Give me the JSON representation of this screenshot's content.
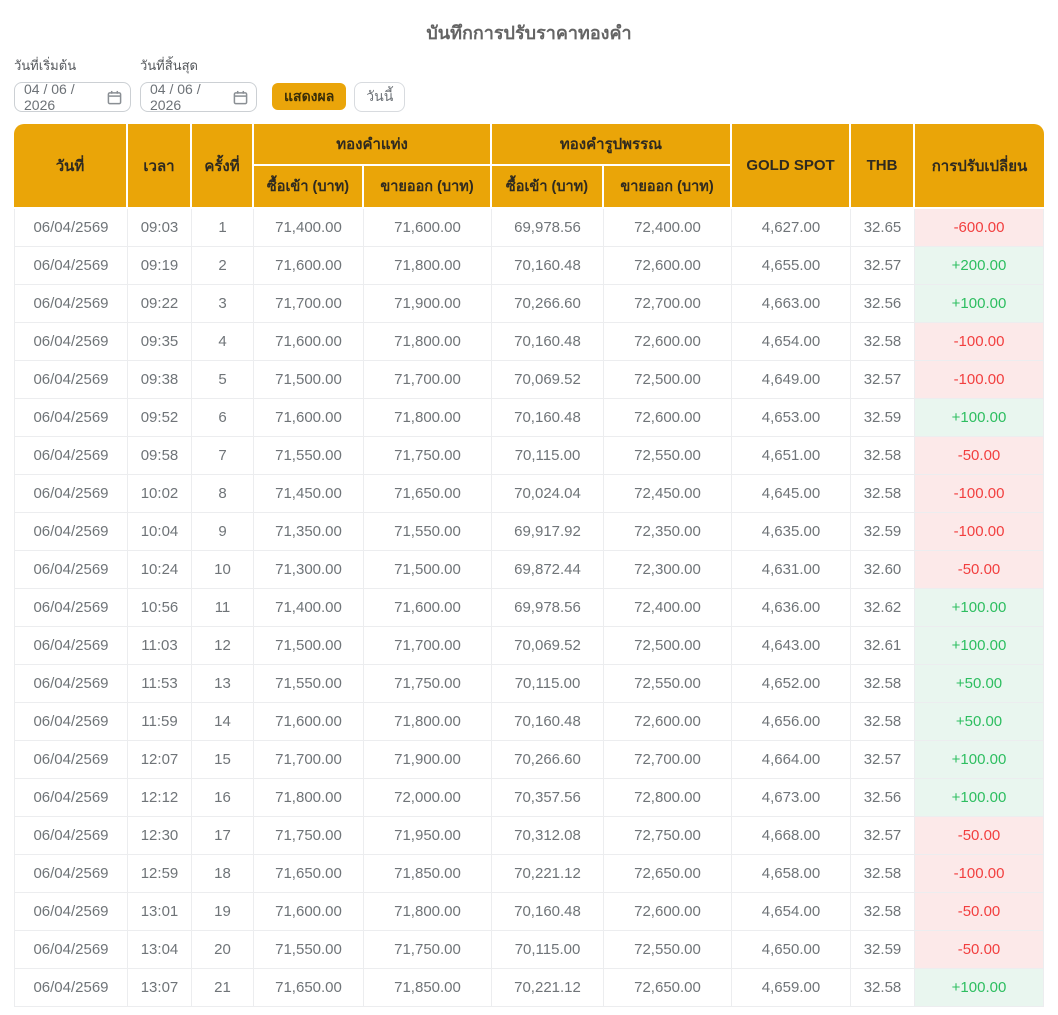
{
  "page": {
    "title": "บันทึกการปรับราคาทองคำ"
  },
  "filters": {
    "start_label": "วันที่เริ่มต้น",
    "end_label": "วันที่สิ้นสุด",
    "start_value": "04 / 06 / 2026",
    "end_value": "04 / 06 / 2026",
    "show_button": "แสดงผล",
    "today_button": "วันนี้"
  },
  "table": {
    "headers": {
      "date": "วันที่",
      "time": "เวลา",
      "round": "ครั้งที่",
      "gold_bar_group": "ทองคำแท่ง",
      "ornament_group": "ทองคำรูปพรรณ",
      "buy": "ซื้อเข้า (บาท)",
      "sell": "ขายออก (บาท)",
      "gold_spot": "GOLD SPOT",
      "thb": "THB",
      "change": "การปรับเปลี่ยน"
    },
    "colors": {
      "header_bg": "#EAA508",
      "positive_text": "#2DBE60",
      "positive_bg": "#E9F6EF",
      "negative_text": "#F23F3F",
      "negative_bg": "#FCE9E9"
    },
    "rows": [
      {
        "date": "06/04/2569",
        "time": "09:03",
        "round": "1",
        "bar_buy": "71,400.00",
        "bar_sell": "71,600.00",
        "orn_buy": "69,978.56",
        "orn_sell": "72,400.00",
        "gold_spot": "4,627.00",
        "thb": "32.65",
        "change": "-600.00"
      },
      {
        "date": "06/04/2569",
        "time": "09:19",
        "round": "2",
        "bar_buy": "71,600.00",
        "bar_sell": "71,800.00",
        "orn_buy": "70,160.48",
        "orn_sell": "72,600.00",
        "gold_spot": "4,655.00",
        "thb": "32.57",
        "change": "+200.00"
      },
      {
        "date": "06/04/2569",
        "time": "09:22",
        "round": "3",
        "bar_buy": "71,700.00",
        "bar_sell": "71,900.00",
        "orn_buy": "70,266.60",
        "orn_sell": "72,700.00",
        "gold_spot": "4,663.00",
        "thb": "32.56",
        "change": "+100.00"
      },
      {
        "date": "06/04/2569",
        "time": "09:35",
        "round": "4",
        "bar_buy": "71,600.00",
        "bar_sell": "71,800.00",
        "orn_buy": "70,160.48",
        "orn_sell": "72,600.00",
        "gold_spot": "4,654.00",
        "thb": "32.58",
        "change": "-100.00"
      },
      {
        "date": "06/04/2569",
        "time": "09:38",
        "round": "5",
        "bar_buy": "71,500.00",
        "bar_sell": "71,700.00",
        "orn_buy": "70,069.52",
        "orn_sell": "72,500.00",
        "gold_spot": "4,649.00",
        "thb": "32.57",
        "change": "-100.00"
      },
      {
        "date": "06/04/2569",
        "time": "09:52",
        "round": "6",
        "bar_buy": "71,600.00",
        "bar_sell": "71,800.00",
        "orn_buy": "70,160.48",
        "orn_sell": "72,600.00",
        "gold_spot": "4,653.00",
        "thb": "32.59",
        "change": "+100.00"
      },
      {
        "date": "06/04/2569",
        "time": "09:58",
        "round": "7",
        "bar_buy": "71,550.00",
        "bar_sell": "71,750.00",
        "orn_buy": "70,115.00",
        "orn_sell": "72,550.00",
        "gold_spot": "4,651.00",
        "thb": "32.58",
        "change": "-50.00"
      },
      {
        "date": "06/04/2569",
        "time": "10:02",
        "round": "8",
        "bar_buy": "71,450.00",
        "bar_sell": "71,650.00",
        "orn_buy": "70,024.04",
        "orn_sell": "72,450.00",
        "gold_spot": "4,645.00",
        "thb": "32.58",
        "change": "-100.00"
      },
      {
        "date": "06/04/2569",
        "time": "10:04",
        "round": "9",
        "bar_buy": "71,350.00",
        "bar_sell": "71,550.00",
        "orn_buy": "69,917.92",
        "orn_sell": "72,350.00",
        "gold_spot": "4,635.00",
        "thb": "32.59",
        "change": "-100.00"
      },
      {
        "date": "06/04/2569",
        "time": "10:24",
        "round": "10",
        "bar_buy": "71,300.00",
        "bar_sell": "71,500.00",
        "orn_buy": "69,872.44",
        "orn_sell": "72,300.00",
        "gold_spot": "4,631.00",
        "thb": "32.60",
        "change": "-50.00"
      },
      {
        "date": "06/04/2569",
        "time": "10:56",
        "round": "11",
        "bar_buy": "71,400.00",
        "bar_sell": "71,600.00",
        "orn_buy": "69,978.56",
        "orn_sell": "72,400.00",
        "gold_spot": "4,636.00",
        "thb": "32.62",
        "change": "+100.00"
      },
      {
        "date": "06/04/2569",
        "time": "11:03",
        "round": "12",
        "bar_buy": "71,500.00",
        "bar_sell": "71,700.00",
        "orn_buy": "70,069.52",
        "orn_sell": "72,500.00",
        "gold_spot": "4,643.00",
        "thb": "32.61",
        "change": "+100.00"
      },
      {
        "date": "06/04/2569",
        "time": "11:53",
        "round": "13",
        "bar_buy": "71,550.00",
        "bar_sell": "71,750.00",
        "orn_buy": "70,115.00",
        "orn_sell": "72,550.00",
        "gold_spot": "4,652.00",
        "thb": "32.58",
        "change": "+50.00"
      },
      {
        "date": "06/04/2569",
        "time": "11:59",
        "round": "14",
        "bar_buy": "71,600.00",
        "bar_sell": "71,800.00",
        "orn_buy": "70,160.48",
        "orn_sell": "72,600.00",
        "gold_spot": "4,656.00",
        "thb": "32.58",
        "change": "+50.00"
      },
      {
        "date": "06/04/2569",
        "time": "12:07",
        "round": "15",
        "bar_buy": "71,700.00",
        "bar_sell": "71,900.00",
        "orn_buy": "70,266.60",
        "orn_sell": "72,700.00",
        "gold_spot": "4,664.00",
        "thb": "32.57",
        "change": "+100.00"
      },
      {
        "date": "06/04/2569",
        "time": "12:12",
        "round": "16",
        "bar_buy": "71,800.00",
        "bar_sell": "72,000.00",
        "orn_buy": "70,357.56",
        "orn_sell": "72,800.00",
        "gold_spot": "4,673.00",
        "thb": "32.56",
        "change": "+100.00"
      },
      {
        "date": "06/04/2569",
        "time": "12:30",
        "round": "17",
        "bar_buy": "71,750.00",
        "bar_sell": "71,950.00",
        "orn_buy": "70,312.08",
        "orn_sell": "72,750.00",
        "gold_spot": "4,668.00",
        "thb": "32.57",
        "change": "-50.00"
      },
      {
        "date": "06/04/2569",
        "time": "12:59",
        "round": "18",
        "bar_buy": "71,650.00",
        "bar_sell": "71,850.00",
        "orn_buy": "70,221.12",
        "orn_sell": "72,650.00",
        "gold_spot": "4,658.00",
        "thb": "32.58",
        "change": "-100.00"
      },
      {
        "date": "06/04/2569",
        "time": "13:01",
        "round": "19",
        "bar_buy": "71,600.00",
        "bar_sell": "71,800.00",
        "orn_buy": "70,160.48",
        "orn_sell": "72,600.00",
        "gold_spot": "4,654.00",
        "thb": "32.58",
        "change": "-50.00"
      },
      {
        "date": "06/04/2569",
        "time": "13:04",
        "round": "20",
        "bar_buy": "71,550.00",
        "bar_sell": "71,750.00",
        "orn_buy": "70,115.00",
        "orn_sell": "72,550.00",
        "gold_spot": "4,650.00",
        "thb": "32.59",
        "change": "-50.00"
      },
      {
        "date": "06/04/2569",
        "time": "13:07",
        "round": "21",
        "bar_buy": "71,650.00",
        "bar_sell": "71,850.00",
        "orn_buy": "70,221.12",
        "orn_sell": "72,650.00",
        "gold_spot": "4,659.00",
        "thb": "32.58",
        "change": "+100.00"
      }
    ]
  }
}
